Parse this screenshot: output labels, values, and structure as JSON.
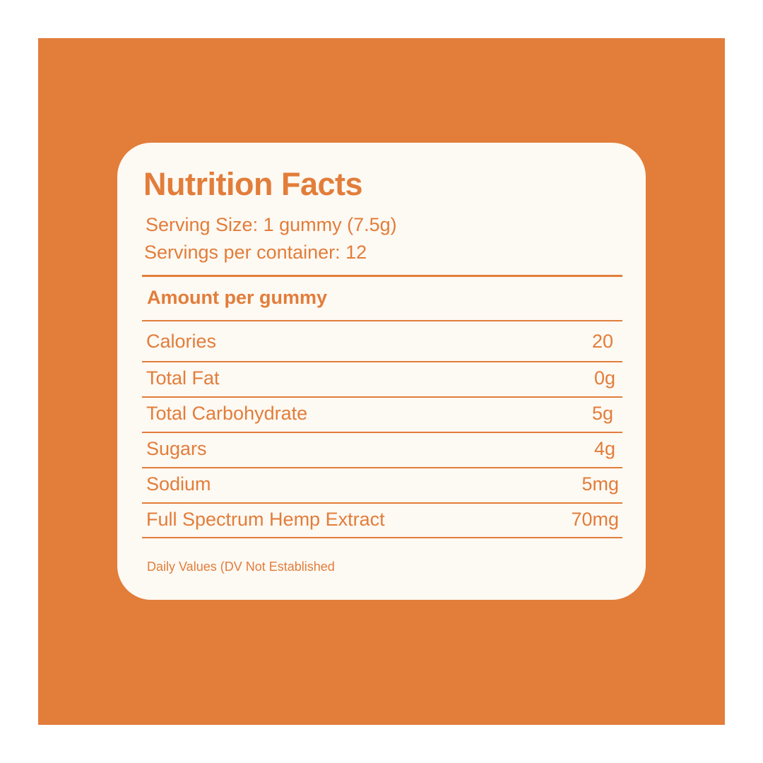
{
  "colors": {
    "accent": "#e27d3a",
    "card_background": "#fdf9f3",
    "page_background": "#ffffff"
  },
  "label": {
    "title": "Nutrition Facts",
    "serving_size": "Serving Size: 1 gummy (7.5g)",
    "servings_per_container": "Servings per container: 12",
    "amount_header": "Amount per gummy",
    "rows": [
      {
        "name": "Calories",
        "value": "20"
      },
      {
        "name": "Total Fat",
        "value": "0g"
      },
      {
        "name": "Total Carbohydrate",
        "value": "5g"
      },
      {
        "name": "Sugars",
        "value": "4g"
      },
      {
        "name": "Sodium",
        "value": "5mg"
      },
      {
        "name": "Full Spectrum Hemp Extract",
        "value": "70mg"
      }
    ],
    "footnote": "Daily Values (DV Not Established"
  }
}
